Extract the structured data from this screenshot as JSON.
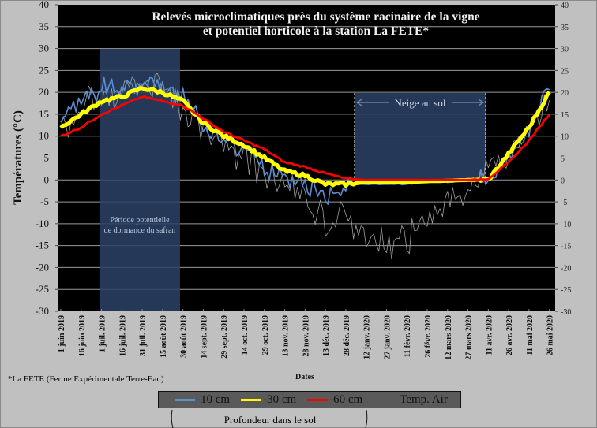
{
  "chart_data": {
    "type": "line",
    "title": "Relevés microclimatiques près du système racinaire de la vigne et potentiel horticole à la station La FETE*",
    "title_lines": [
      "Relevés microclimatiques près du système racinaire de la vigne",
      "et potentiel horticole à la station La FETE*"
    ],
    "xlabel": "Dates",
    "ylabel": "Températures (°C)",
    "ylim": [
      -30,
      40
    ],
    "yticks": [
      40,
      35,
      30,
      25,
      20,
      15,
      10,
      5,
      0,
      -5,
      -10,
      -15,
      -20,
      -25,
      -30
    ],
    "secondary_y_axis": true,
    "grid": true,
    "legend_position": "bottom",
    "categories": [
      "1 juin 2019",
      "16 juin 2019",
      "1 juil. 2019",
      "16 juil. 2019",
      "31 juil. 2019",
      "15 août 2019",
      "30 août 2019",
      "14 sept. 2019",
      "29 sept. 2019",
      "14 oct. 2019",
      "29 oct. 2019",
      "13 nov. 2019",
      "28 nov. 2019",
      "13 déc. 2019",
      "28 déc. 2019",
      "12 janv. 2020",
      "27 janv. 2020",
      "11 févr. 2020",
      "26 févr. 2020",
      "12 mars 2020",
      "27 mars 2020",
      "11 avr. 2020",
      "26 avr. 2020",
      "11 mai 2020",
      "26 mai 2020"
    ],
    "series": [
      {
        "name": "-10 cm",
        "color": "#6699cc",
        "values": [
          14,
          18,
          21,
          21,
          23,
          21,
          19,
          12,
          9,
          7,
          3,
          0,
          -1,
          -4,
          -1,
          -1,
          -1,
          -1,
          -0.5,
          -0.5,
          0,
          0,
          5,
          12,
          22
        ]
      },
      {
        "name": "-30 cm",
        "color": "#ffff00",
        "values": [
          12,
          15,
          18,
          19,
          21,
          20,
          18,
          13,
          10,
          8,
          5,
          2,
          1,
          -1,
          -1,
          -0.5,
          -0.5,
          -0.5,
          -0.3,
          -0.2,
          0,
          0,
          6,
          12,
          20
        ]
      },
      {
        "name": "-60 cm",
        "color": "#ff0000",
        "values": [
          10,
          12,
          15,
          17,
          19,
          18,
          17,
          14,
          11,
          9,
          7,
          4,
          3,
          1.5,
          0.3,
          0,
          0,
          0,
          0,
          0,
          0,
          0.3,
          4,
          9,
          15
        ]
      },
      {
        "name": "Temp. Air",
        "color": "#aaaaaa",
        "values": [
          12,
          16,
          20,
          20,
          22,
          20,
          17,
          11,
          8,
          6,
          2,
          -2,
          -5,
          -10,
          -8,
          -12,
          -15,
          -14,
          -10,
          -5,
          -3,
          1,
          5,
          10,
          18
        ]
      }
    ],
    "annotations": [
      {
        "text": "Période potentielle de dormance du safran",
        "x_range": [
          "1 juil. 2019",
          "30 août 2019"
        ],
        "y_range": [
          -30,
          30
        ]
      },
      {
        "text": "Neige au sol",
        "x_range": [
          "2 janv. 2020",
          "11 avr. 2020"
        ],
        "y_range": [
          0,
          25
        ]
      }
    ]
  },
  "annotations": {
    "dormance_line1": "Période potentielle",
    "dormance_line2": "de dormance du safran",
    "neige": "Neige au sol"
  },
  "footnote": "*La FETE (Ferme Expérimentale Terre-Eau)",
  "legend": {
    "items": [
      {
        "label": "-10 cm",
        "color": "#5b8fd0"
      },
      {
        "label": "-30 cm",
        "color": "#ffff00"
      },
      {
        "label": "-60 cm",
        "color": "#ff0000"
      },
      {
        "label": "Temp. Air",
        "color": "#9a9a9a"
      }
    ],
    "group_label": "Profondeur dans le sol"
  }
}
